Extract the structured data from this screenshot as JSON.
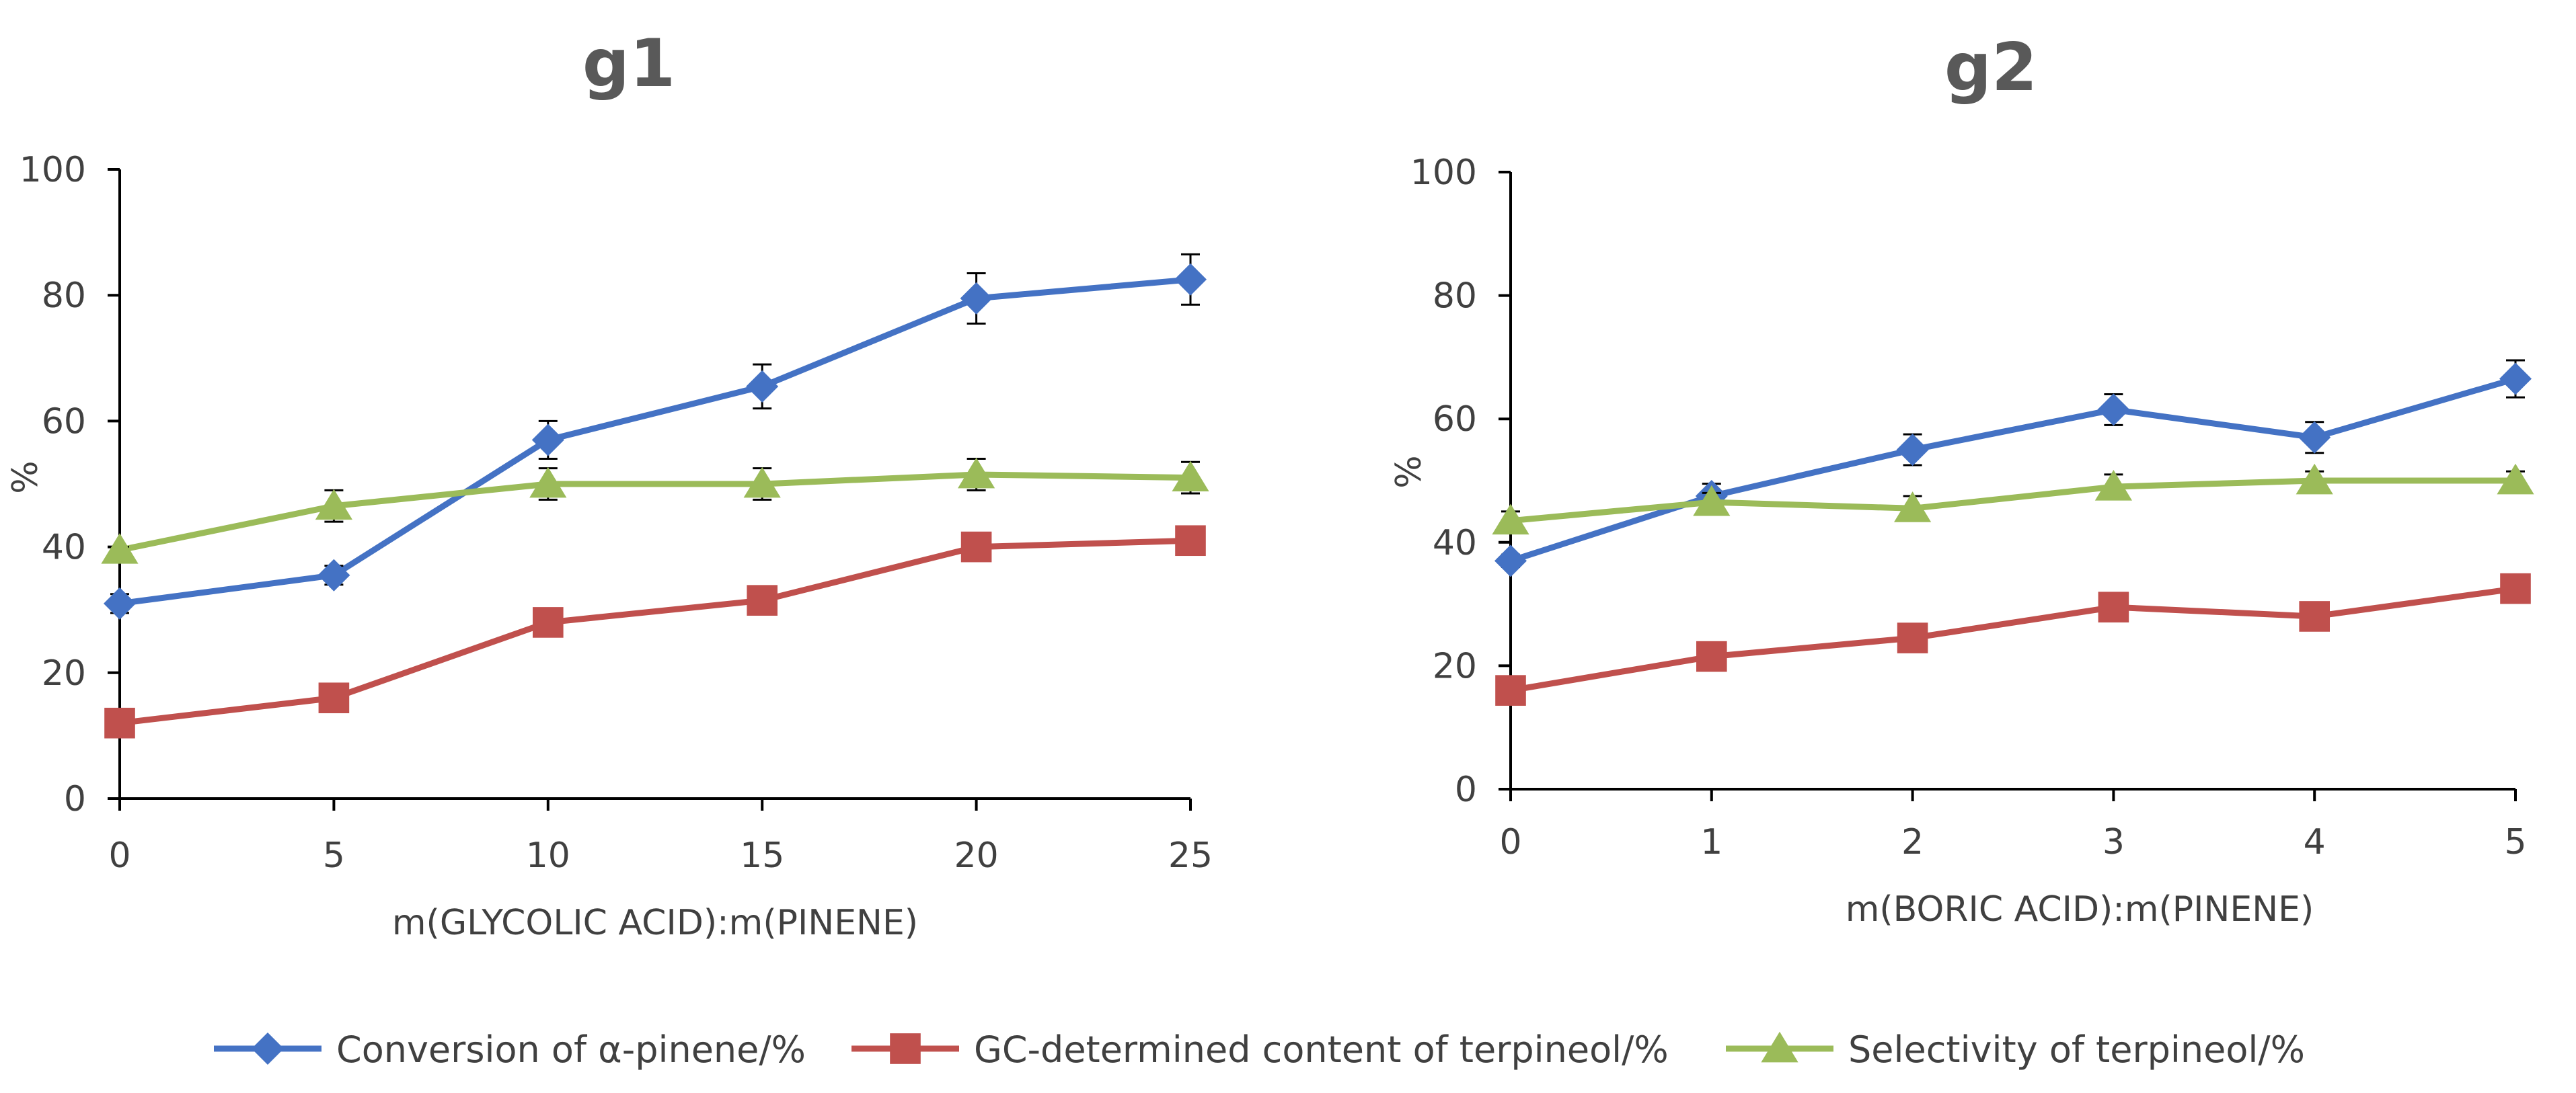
{
  "chart_data": [
    {
      "type": "line",
      "title": "g1",
      "xlabel": "m(GLYCOLIC ACID):m(PINENE)",
      "ylabel": "%",
      "x": [
        0,
        5,
        10,
        15,
        20,
        25
      ],
      "x_tick_labels": [
        "0",
        "5",
        "10",
        "15",
        "20",
        "25"
      ],
      "xlim": [
        0,
        25
      ],
      "ylim": [
        0,
        100
      ],
      "y_ticks": [
        0,
        20,
        40,
        60,
        80,
        100
      ],
      "y_tick_labels": [
        "0",
        "20",
        "40",
        "60",
        "80",
        "100"
      ],
      "grid": false,
      "series": [
        {
          "name": "Conversion of α-pinene/%",
          "marker": "diamond",
          "color": "#4472C4",
          "values": [
            31,
            35.5,
            57,
            65.5,
            79.5,
            82.5
          ],
          "errors": [
            1.5,
            1.5,
            3,
            3.5,
            4,
            4
          ]
        },
        {
          "name": "GC-determined content of terpineol/%",
          "marker": "square",
          "color": "#C0504D",
          "values": [
            12,
            16,
            28,
            31.5,
            40,
            41
          ],
          "errors": [
            0,
            0,
            0,
            0,
            0,
            0
          ]
        },
        {
          "name": "Selectivity of terpineol/%",
          "marker": "triangle",
          "color": "#9BBB59",
          "values": [
            39.5,
            46.5,
            50,
            50,
            51.5,
            51
          ],
          "errors": [
            0.5,
            2.5,
            2.5,
            2.5,
            2.5,
            2.5
          ]
        }
      ]
    },
    {
      "type": "line",
      "title": "g2",
      "xlabel": "m(BORIC ACID):m(PINENE)",
      "ylabel": "%",
      "x": [
        0,
        1,
        2,
        3,
        4,
        5
      ],
      "x_tick_labels": [
        "0",
        "1",
        "2",
        "3",
        "4",
        "5"
      ],
      "xlim": [
        0,
        5
      ],
      "ylim": [
        0,
        100
      ],
      "y_ticks": [
        0,
        20,
        40,
        60,
        80,
        100
      ],
      "y_tick_labels": [
        "0",
        "20",
        "40",
        "60",
        "80",
        "100"
      ],
      "grid": false,
      "series": [
        {
          "name": "Conversion of α-pinene/%",
          "marker": "diamond",
          "color": "#4472C4",
          "values": [
            37,
            47.5,
            55,
            61.5,
            57,
            66.5
          ],
          "errors": [
            1,
            2,
            2.5,
            2.5,
            2.5,
            3
          ]
        },
        {
          "name": "GC-determined content of terpineol/%",
          "marker": "square",
          "color": "#C0504D",
          "values": [
            16,
            21.5,
            24.5,
            29.5,
            28,
            32.5
          ],
          "errors": [
            0,
            0,
            0,
            0,
            0,
            0
          ]
        },
        {
          "name": "Selectivity of terpineol/%",
          "marker": "triangle",
          "color": "#9BBB59",
          "values": [
            43.5,
            46.5,
            45.5,
            49,
            50,
            50
          ],
          "errors": [
            1.5,
            1.5,
            2,
            2,
            1.5,
            1.5
          ]
        }
      ]
    }
  ],
  "legend": {
    "placement": "bottom-center",
    "items": [
      {
        "label": "Conversion of α-pinene/%",
        "marker": "diamond",
        "color": "#4472C4"
      },
      {
        "label": "GC-determined content of terpineol/%",
        "marker": "square",
        "color": "#C0504D"
      },
      {
        "label": "Selectivity of terpineol/%",
        "marker": "triangle",
        "color": "#9BBB59"
      }
    ]
  }
}
